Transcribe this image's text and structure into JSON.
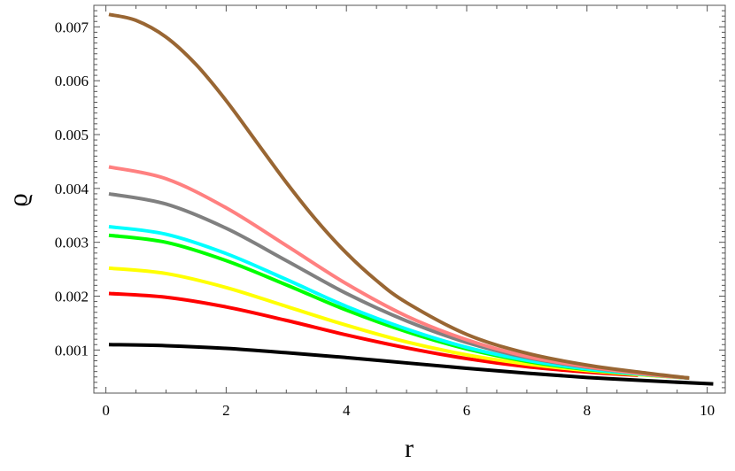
{
  "chart_data": {
    "type": "line",
    "title": "",
    "xlabel": "r",
    "ylabel": "ϱ",
    "xlim": [
      -0.2,
      10.3
    ],
    "ylim": [
      0.0002,
      0.0074
    ],
    "xticks": [
      {
        "value": 0,
        "label": "0"
      },
      {
        "value": 2,
        "label": "2"
      },
      {
        "value": 4,
        "label": "4"
      },
      {
        "value": 6,
        "label": "6"
      },
      {
        "value": 8,
        "label": "8"
      },
      {
        "value": 10,
        "label": "10"
      }
    ],
    "yticks": [
      {
        "value": 0.001,
        "label": "0.001"
      },
      {
        "value": 0.002,
        "label": "0.002"
      },
      {
        "value": 0.003,
        "label": "0.003"
      },
      {
        "value": 0.004,
        "label": "0.004"
      },
      {
        "value": 0.005,
        "label": "0.005"
      },
      {
        "value": 0.006,
        "label": "0.006"
      },
      {
        "value": 0.007,
        "label": "0.007"
      }
    ],
    "grid": false,
    "legend": "none",
    "series": [
      {
        "color": "#000000",
        "x": [
          0.05,
          1,
          2,
          3,
          4,
          5,
          6,
          7,
          8,
          9,
          10.1
        ],
        "y": [
          0.0011,
          0.00108,
          0.00103,
          0.00095,
          0.00086,
          0.00076,
          0.00066,
          0.00057,
          0.00049,
          0.00043,
          0.00037
        ]
      },
      {
        "color": "#ff0000",
        "x": [
          0.05,
          1,
          2,
          3,
          4,
          5,
          6,
          7,
          8,
          8.85
        ],
        "y": [
          0.00205,
          0.00198,
          0.0018,
          0.00155,
          0.00128,
          0.00104,
          0.00084,
          0.00069,
          0.00059,
          0.00053
        ]
      },
      {
        "color": "#ffff00",
        "x": [
          0.05,
          1,
          2,
          3,
          4,
          5,
          6,
          7,
          8,
          9,
          9.7
        ],
        "y": [
          0.00252,
          0.00242,
          0.00216,
          0.00181,
          0.00146,
          0.00115,
          0.00091,
          0.00074,
          0.00062,
          0.00053,
          0.00048
        ]
      },
      {
        "color": "#00ff00",
        "x": [
          0.05,
          1,
          2,
          3,
          4,
          5,
          6,
          7,
          8,
          9,
          9.7
        ],
        "y": [
          0.00313,
          0.003,
          0.00266,
          0.00221,
          0.00174,
          0.00134,
          0.00102,
          0.00079,
          0.00064,
          0.00054,
          0.00048
        ]
      },
      {
        "color": "#00ffff",
        "x": [
          0.05,
          1,
          2,
          3,
          4,
          5,
          6,
          7,
          8,
          9,
          9.7
        ],
        "y": [
          0.00329,
          0.00315,
          0.00279,
          0.00231,
          0.00181,
          0.00139,
          0.00105,
          0.00081,
          0.00065,
          0.00054,
          0.00048
        ]
      },
      {
        "color": "#808080",
        "x": [
          0.05,
          1,
          2,
          3,
          4,
          5,
          6,
          7,
          8,
          9,
          9.7
        ],
        "y": [
          0.0039,
          0.00371,
          0.00326,
          0.00266,
          0.00205,
          0.00154,
          0.00114,
          0.00086,
          0.00068,
          0.00055,
          0.00048
        ]
      },
      {
        "color": "#ff8080",
        "x": [
          0.05,
          1,
          2,
          3,
          4,
          5,
          6,
          7,
          8,
          9,
          9.7
        ],
        "y": [
          0.0044,
          0.00418,
          0.00364,
          0.00294,
          0.00223,
          0.00163,
          0.00119,
          0.00088,
          0.00069,
          0.00055,
          0.00048
        ]
      },
      {
        "color": "#996633",
        "x": [
          0.05,
          0.5,
          1,
          1.5,
          2,
          2.5,
          3,
          3.5,
          4,
          4.5,
          5,
          6,
          7,
          8,
          9,
          9.7
        ],
        "y": [
          0.00723,
          0.00712,
          0.00681,
          0.0063,
          0.00563,
          0.00487,
          0.00411,
          0.00341,
          0.0028,
          0.00229,
          0.00188,
          0.00129,
          0.00094,
          0.00072,
          0.00057,
          0.00048
        ]
      }
    ]
  }
}
